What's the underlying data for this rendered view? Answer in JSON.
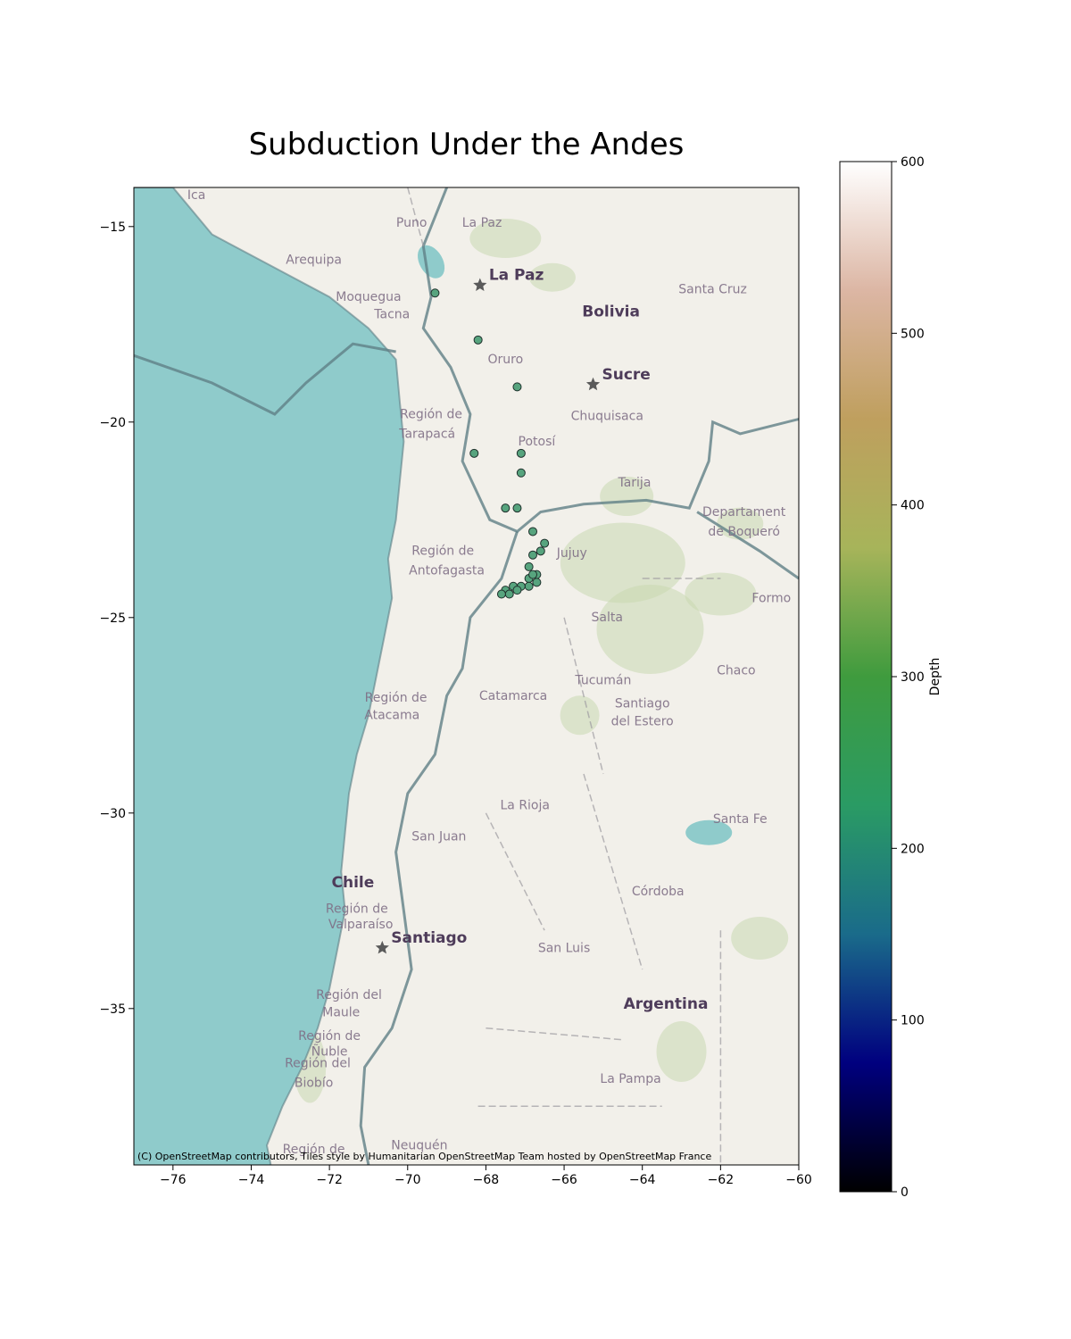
{
  "title": "Subduction Under the Andes",
  "attribution": "(C) OpenStreetMap contributors, Tiles style by Humanitarian OpenStreetMap Team hosted by OpenStreetMap France",
  "colors": {
    "ocean": "#8fcbcb",
    "land": "#f2f0ea",
    "border": "#5f7f86",
    "vegetation": "#c8d9b0",
    "marker_fill": "#57a47e",
    "marker_edge": "#1e2f2b",
    "capital_star": "#5a5a5a"
  },
  "map": {
    "xlim": [
      -77,
      -60
    ],
    "ylim": [
      -39,
      -14
    ],
    "x_ticks": [
      -76,
      -74,
      -72,
      -70,
      -68,
      -66,
      -64,
      -62,
      -60
    ],
    "y_ticks": [
      -15,
      -20,
      -25,
      -30,
      -35
    ],
    "x_tick_labels": [
      "−76",
      "−74",
      "−72",
      "−70",
      "−68",
      "−66",
      "−64",
      "−62",
      "−60"
    ],
    "y_tick_labels": [
      "−15",
      "−20",
      "−25",
      "−30",
      "−35"
    ],
    "capitals": [
      {
        "name": "La Paz",
        "lon": -68.15,
        "lat": -16.5
      },
      {
        "name": "Sucre",
        "lon": -65.26,
        "lat": -19.04
      },
      {
        "name": "Santiago",
        "lon": -70.65,
        "lat": -33.45
      }
    ],
    "country_labels": [
      {
        "name": "Bolivia",
        "lon": -64.8,
        "lat": -17.3
      },
      {
        "name": "Chile",
        "lon": -71.4,
        "lat": -31.9
      },
      {
        "name": "Argentina",
        "lon": -63.4,
        "lat": -35.0
      }
    ],
    "place_labels": [
      {
        "name": "Ica",
        "lon": -75.4,
        "lat": -14.3
      },
      {
        "name": "Arequipa",
        "lon": -72.4,
        "lat": -15.95
      },
      {
        "name": "Puno",
        "lon": -69.9,
        "lat": -15.0
      },
      {
        "name": "La Paz",
        "lon": -68.1,
        "lat": -15.0
      },
      {
        "name": "Moquegua",
        "lon": -71.0,
        "lat": -16.9
      },
      {
        "name": "Tacna",
        "lon": -70.4,
        "lat": -17.35
      },
      {
        "name": "Santa Cruz",
        "lon": -62.2,
        "lat": -16.7
      },
      {
        "name": "Oruro",
        "lon": -67.5,
        "lat": -18.5
      },
      {
        "name": "Región de",
        "lon": -69.4,
        "lat": -19.9
      },
      {
        "name": "Tarapacá",
        "lon": -69.5,
        "lat": -20.4
      },
      {
        "name": "Chuquisaca",
        "lon": -64.9,
        "lat": -19.95
      },
      {
        "name": "Potosí",
        "lon": -66.7,
        "lat": -20.6
      },
      {
        "name": "Tarija",
        "lon": -64.2,
        "lat": -21.65
      },
      {
        "name": "Departament",
        "lon": -61.4,
        "lat": -22.4
      },
      {
        "name": "de Boqueró",
        "lon": -61.4,
        "lat": -22.9
      },
      {
        "name": "Región de",
        "lon": -69.1,
        "lat": -23.4
      },
      {
        "name": "Antofagasta",
        "lon": -69.0,
        "lat": -23.9
      },
      {
        "name": "Jujuy",
        "lon": -65.8,
        "lat": -23.45
      },
      {
        "name": "Salta",
        "lon": -64.9,
        "lat": -25.1
      },
      {
        "name": "Formo",
        "lon": -60.7,
        "lat": -24.6
      },
      {
        "name": "Chaco",
        "lon": -61.6,
        "lat": -26.45
      },
      {
        "name": "Tucumán",
        "lon": -65.0,
        "lat": -26.7
      },
      {
        "name": "Catamarca",
        "lon": -67.3,
        "lat": -27.1
      },
      {
        "name": "Región de",
        "lon": -70.3,
        "lat": -27.15
      },
      {
        "name": "Atacama",
        "lon": -70.4,
        "lat": -27.6
      },
      {
        "name": "Santiago",
        "lon": -64.0,
        "lat": -27.3
      },
      {
        "name": "del Estero",
        "lon": -64.0,
        "lat": -27.75
      },
      {
        "name": "La Rioja",
        "lon": -67.0,
        "lat": -29.9
      },
      {
        "name": "San Juan",
        "lon": -69.2,
        "lat": -30.7
      },
      {
        "name": "Santa Fe",
        "lon": -61.5,
        "lat": -30.25
      },
      {
        "name": "Córdoba",
        "lon": -63.6,
        "lat": -32.1
      },
      {
        "name": "Región de",
        "lon": -71.3,
        "lat": -32.55
      },
      {
        "name": "Valparaíso",
        "lon": -71.2,
        "lat": -32.95
      },
      {
        "name": "San Luis",
        "lon": -66.0,
        "lat": -33.55
      },
      {
        "name": "Región del",
        "lon": -71.5,
        "lat": -34.75
      },
      {
        "name": "Maule",
        "lon": -71.7,
        "lat": -35.2
      },
      {
        "name": "Región de",
        "lon": -72.0,
        "lat": -35.8
      },
      {
        "name": "Ñuble",
        "lon": -72.0,
        "lat": -36.2
      },
      {
        "name": "Región del",
        "lon": -72.3,
        "lat": -36.5
      },
      {
        "name": "Biobío",
        "lon": -72.4,
        "lat": -37.0
      },
      {
        "name": "La Pampa",
        "lon": -64.3,
        "lat": -36.9
      },
      {
        "name": "Región de",
        "lon": -72.4,
        "lat": -38.7
      },
      {
        "name": "Neuquén",
        "lon": -69.7,
        "lat": -38.6
      }
    ]
  },
  "colorbar": {
    "label": "Depth",
    "min": 0,
    "max": 600,
    "ticks": [
      0,
      100,
      200,
      300,
      400,
      500,
      600
    ],
    "colormap": [
      "#000000",
      "#00007f",
      "#1a6b8a",
      "#2a9b64",
      "#3f9b3e",
      "#a7b45a",
      "#bf9f5e",
      "#dcb6a4",
      "#ffffff"
    ]
  },
  "chart_data": {
    "type": "scatter",
    "title": "Subduction Under the Andes",
    "xlabel": "",
    "ylabel": "",
    "xlim": [
      -77,
      -60
    ],
    "ylim": [
      -39,
      -14
    ],
    "color_by": "Depth",
    "points": [
      {
        "lon": -69.3,
        "lat": -16.7,
        "depth": 200
      },
      {
        "lon": -68.2,
        "lat": -17.9,
        "depth": 200
      },
      {
        "lon": -67.2,
        "lat": -19.1,
        "depth": 200
      },
      {
        "lon": -68.3,
        "lat": -20.8,
        "depth": 200
      },
      {
        "lon": -67.1,
        "lat": -20.8,
        "depth": 200
      },
      {
        "lon": -67.1,
        "lat": -21.3,
        "depth": 200
      },
      {
        "lon": -67.5,
        "lat": -22.2,
        "depth": 200
      },
      {
        "lon": -67.2,
        "lat": -22.2,
        "depth": 200
      },
      {
        "lon": -66.8,
        "lat": -22.8,
        "depth": 200
      },
      {
        "lon": -66.5,
        "lat": -23.1,
        "depth": 200
      },
      {
        "lon": -66.6,
        "lat": -23.3,
        "depth": 200
      },
      {
        "lon": -66.8,
        "lat": -23.4,
        "depth": 200
      },
      {
        "lon": -66.9,
        "lat": -23.7,
        "depth": 200
      },
      {
        "lon": -66.7,
        "lat": -23.9,
        "depth": 200
      },
      {
        "lon": -66.9,
        "lat": -24.0,
        "depth": 200
      },
      {
        "lon": -66.7,
        "lat": -24.1,
        "depth": 200
      },
      {
        "lon": -66.9,
        "lat": -24.2,
        "depth": 200
      },
      {
        "lon": -67.1,
        "lat": -24.2,
        "depth": 200
      },
      {
        "lon": -67.3,
        "lat": -24.2,
        "depth": 200
      },
      {
        "lon": -67.5,
        "lat": -24.3,
        "depth": 200
      },
      {
        "lon": -67.2,
        "lat": -24.3,
        "depth": 200
      },
      {
        "lon": -67.4,
        "lat": -24.4,
        "depth": 200
      },
      {
        "lon": -67.6,
        "lat": -24.4,
        "depth": 200
      },
      {
        "lon": -66.8,
        "lat": -23.9,
        "depth": 200
      }
    ]
  }
}
